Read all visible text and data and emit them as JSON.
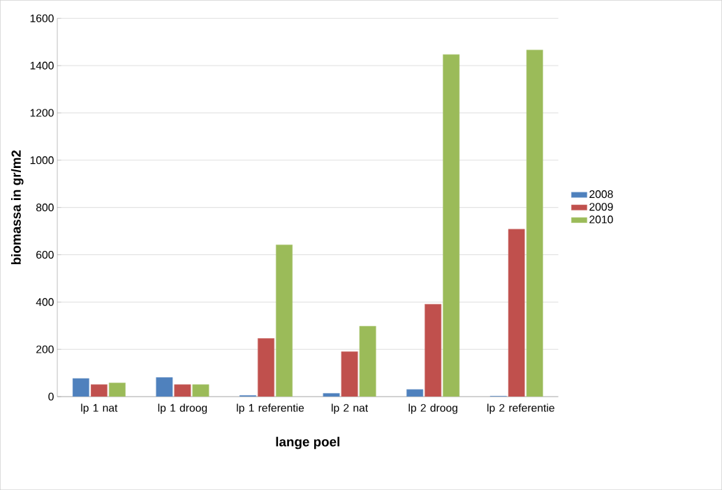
{
  "chart_data": {
    "type": "bar",
    "xlabel": "lange poel",
    "ylabel": "biomassa in gr/m2",
    "categories": [
      "lp 1 nat",
      "lp 1 droog",
      "lp 1 referentie",
      "lp 2 nat",
      "lp 2 droog",
      "lp 2 referentie"
    ],
    "series": [
      {
        "name": "2008",
        "color": "#4f81bd",
        "values": [
          77,
          81,
          5,
          14,
          30,
          2
        ]
      },
      {
        "name": "2009",
        "color": "#c0504d",
        "values": [
          51,
          51,
          246,
          190,
          391,
          708
        ]
      },
      {
        "name": "2010",
        "color": "#9bbb59",
        "values": [
          58,
          51,
          642,
          298,
          1447,
          1466
        ]
      }
    ],
    "ylim": [
      0,
      1600
    ],
    "yticks": [
      0,
      200,
      400,
      600,
      800,
      1000,
      1200,
      1400,
      1600
    ],
    "grid": "y",
    "legend": "right"
  }
}
